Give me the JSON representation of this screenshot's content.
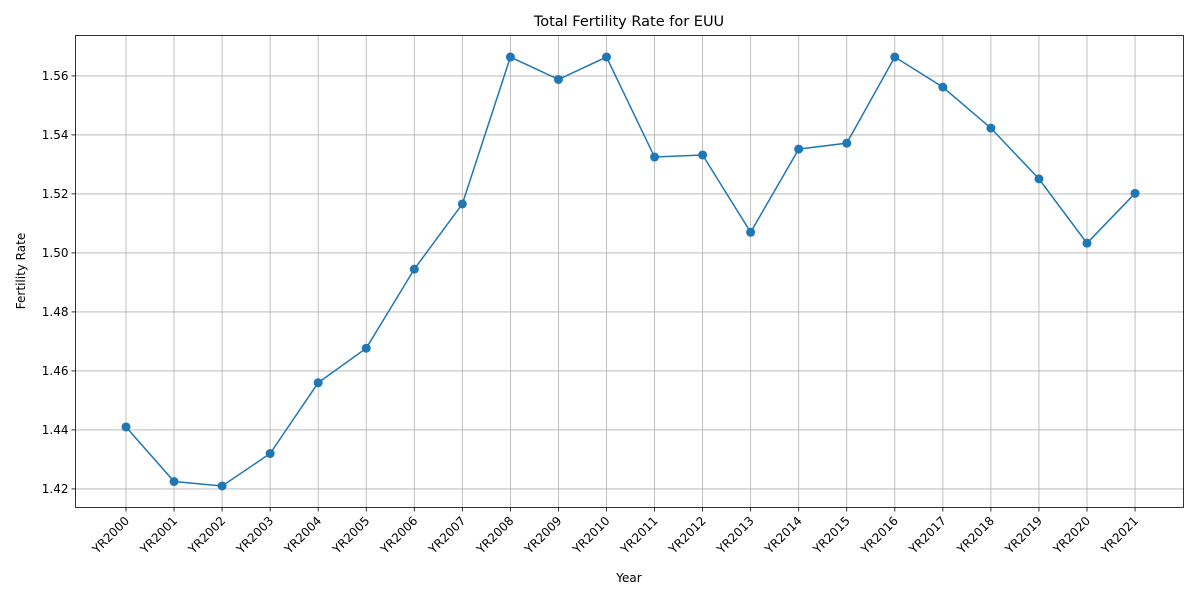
{
  "chart_data": {
    "type": "line",
    "title": "Total Fertility Rate for EUU",
    "xlabel": "Year",
    "ylabel": "Fertility Rate",
    "categories": [
      "YR2000",
      "YR2001",
      "YR2002",
      "YR2003",
      "YR2004",
      "YR2005",
      "YR2006",
      "YR2007",
      "YR2008",
      "YR2009",
      "YR2010",
      "YR2011",
      "YR2012",
      "YR2013",
      "YR2014",
      "YR2015",
      "YR2016",
      "YR2017",
      "YR2018",
      "YR2019",
      "YR2020",
      "YR2021"
    ],
    "series": [
      {
        "values": [
          1.441,
          1.4225,
          1.421,
          1.432,
          1.456,
          1.4677,
          1.4945,
          1.5166,
          1.5664,
          1.5588,
          1.5664,
          1.5325,
          1.5332,
          1.507,
          1.5352,
          1.5372,
          1.5664,
          1.5562,
          1.5423,
          1.5251,
          1.5033,
          1.5202
        ],
        "color": "#1f77b4"
      }
    ],
    "yticks": [
      1.42,
      1.44,
      1.46,
      1.48,
      1.5,
      1.52,
      1.54,
      1.56
    ],
    "ylim": [
      1.4137,
      1.5737
    ],
    "grid": true,
    "markers": "circle",
    "xtick_rotation": 45
  }
}
